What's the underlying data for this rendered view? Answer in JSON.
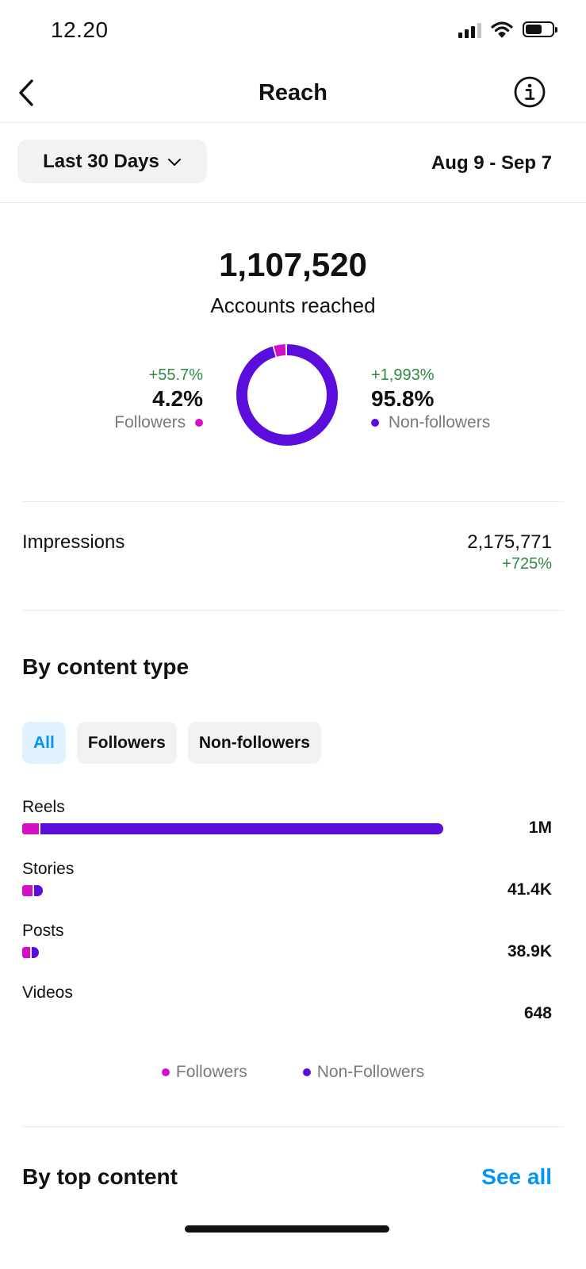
{
  "status_bar": {
    "time": "12.20"
  },
  "header": {
    "title": "Reach",
    "back_icon": "chevron-left-icon",
    "info_icon": "info-icon"
  },
  "filter": {
    "range_label": "Last 30 Days",
    "date_range": "Aug 9 - Sep 7"
  },
  "summary": {
    "accounts_reached": "1,107,520",
    "accounts_label": "Accounts reached",
    "followers": {
      "change": "+55.7%",
      "percent": "4.2%",
      "label": "Followers",
      "fraction": 0.042
    },
    "non_followers": {
      "change": "+1,993%",
      "percent": "95.8%",
      "label": "Non-followers",
      "fraction": 0.958
    }
  },
  "impressions": {
    "label": "Impressions",
    "value": "2,175,771",
    "change": "+725%"
  },
  "content_type": {
    "title": "By content type",
    "tabs": [
      {
        "label": "All",
        "active": true
      },
      {
        "label": "Followers",
        "active": false
      },
      {
        "label": "Non-followers",
        "active": false
      }
    ],
    "rows": [
      {
        "label": "Reels",
        "value": "1M",
        "followers_fraction": 0.04,
        "non_followers_fraction": 0.96,
        "total_fraction": 1.0
      },
      {
        "label": "Stories",
        "value": "41.4K",
        "followers_fraction": 0.55,
        "non_followers_fraction": 0.45,
        "total_fraction": 0.045
      },
      {
        "label": "Posts",
        "value": "38.9K",
        "followers_fraction": 0.5,
        "non_followers_fraction": 0.5,
        "total_fraction": 0.035
      },
      {
        "label": "Videos",
        "value": "648",
        "followers_fraction": 0,
        "non_followers_fraction": 0,
        "total_fraction": 0
      }
    ],
    "legend": {
      "followers": "Followers",
      "non_followers": "Non-Followers"
    }
  },
  "top_content": {
    "title": "By top content",
    "see_all": "See all"
  },
  "colors": {
    "followers": "#d211c7",
    "non_followers": "#5b0ddc",
    "positive": "#2f8a42",
    "link": "#0095f6"
  }
}
